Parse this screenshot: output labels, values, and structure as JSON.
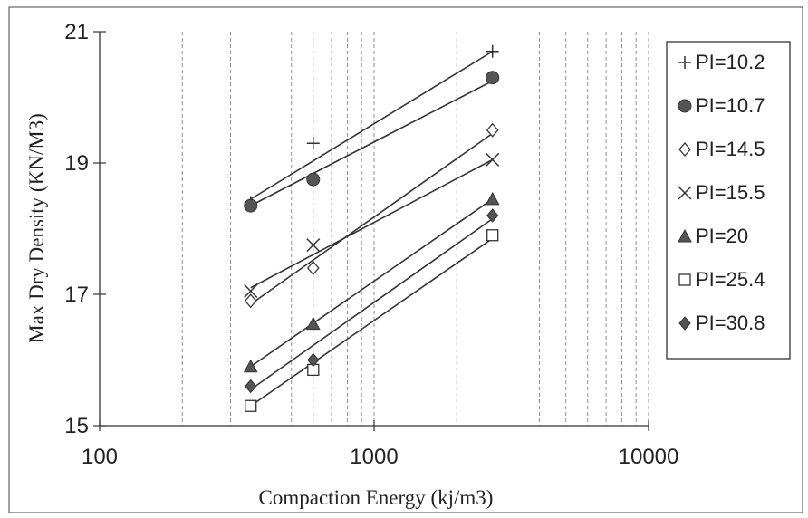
{
  "chart_data": {
    "type": "scatter",
    "x_scale": "log",
    "xlim": [
      100,
      10000
    ],
    "ylim": [
      15,
      21
    ],
    "xlabel": "Compaction Energy (kj/m3)",
    "ylabel": "Max Dry Density  (KN/M3)",
    "x_ticks": [
      "100",
      "1000",
      "10000"
    ],
    "y_ticks": [
      "15",
      "17",
      "19",
      "21"
    ],
    "grid": "vertical minor log gridlines (dashed)",
    "legend_position": "right",
    "trendlines": true,
    "series": [
      {
        "name": "PI=10.2",
        "marker": "plus",
        "x": [
          355,
          600,
          2700
        ],
        "y": [
          18.4,
          19.3,
          20.7
        ],
        "fit": [
          18.45,
          20.7
        ]
      },
      {
        "name": "PI=10.7",
        "marker": "circle",
        "x": [
          355,
          600,
          2700
        ],
        "y": [
          18.35,
          18.75,
          20.3
        ],
        "fit": [
          18.35,
          20.25
        ]
      },
      {
        "name": "PI=14.5",
        "marker": "diamond-open",
        "x": [
          355,
          600,
          2700
        ],
        "y": [
          16.9,
          17.4,
          19.5
        ],
        "fit": [
          16.85,
          19.45
        ]
      },
      {
        "name": "PI=15.5",
        "marker": "x",
        "x": [
          355,
          600,
          2700
        ],
        "y": [
          17.05,
          17.75,
          19.05
        ],
        "fit": [
          17.1,
          19.05
        ]
      },
      {
        "name": "PI=20",
        "marker": "triangle",
        "x": [
          355,
          600,
          2700
        ],
        "y": [
          15.9,
          16.55,
          18.45
        ],
        "fit": [
          15.9,
          18.45
        ]
      },
      {
        "name": "PI=25.4",
        "marker": "square-open",
        "x": [
          355,
          600,
          2700
        ],
        "y": [
          15.3,
          15.85,
          17.9
        ],
        "fit": [
          15.3,
          17.85
        ]
      },
      {
        "name": "PI=30.8",
        "marker": "diamond",
        "x": [
          355,
          600,
          2700
        ],
        "y": [
          15.6,
          16.0,
          18.2
        ],
        "fit": [
          15.55,
          18.15
        ]
      }
    ]
  }
}
